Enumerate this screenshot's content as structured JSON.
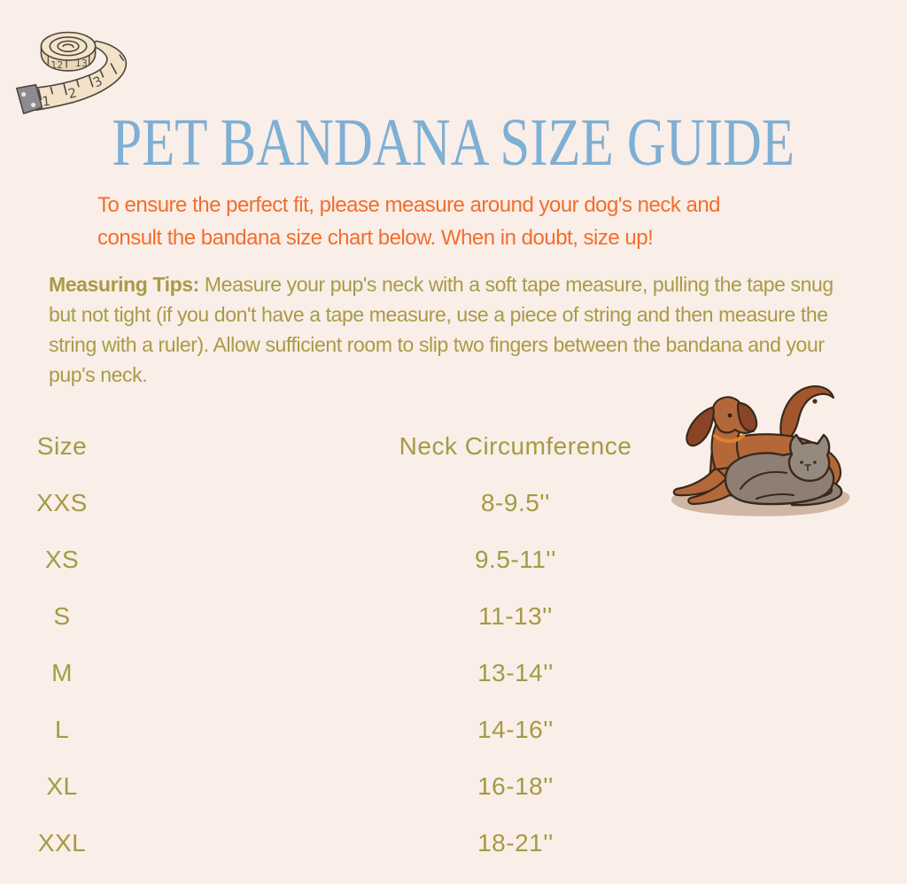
{
  "palette": {
    "background": "#faeee8",
    "title_blue": "#7eafd4",
    "intro_orange": "#f26e2d",
    "body_olive": "#a89b46"
  },
  "header": {
    "title": "PET BANDANA SIZE GUIDE",
    "intro_lines": [
      "To ensure the perfect fit, please measure around your dog's neck and",
      "consult the bandana size chart below. When in doubt, size up!"
    ]
  },
  "tips": {
    "label": "Measuring Tips:",
    "text": " Measure your pup's neck with a soft tape measure, pulling the tape snug but not tight (if you don't have a tape measure, use a piece of string and then measure the string with a ruler). Allow sufficient room to slip two fingers between the bandana and your pup's neck."
  },
  "size_table": {
    "columns": [
      "Size",
      "Neck Circumference"
    ],
    "rows": [
      {
        "size": "XXS",
        "neck": "8-9.5''"
      },
      {
        "size": "XS",
        "neck": "9.5-11''"
      },
      {
        "size": "S",
        "neck": "11-13''"
      },
      {
        "size": "M",
        "neck": "13-14''"
      },
      {
        "size": "L",
        "neck": "14-16''"
      },
      {
        "size": "XL",
        "neck": "16-18''"
      },
      {
        "size": "XXL",
        "neck": "18-21''"
      }
    ]
  },
  "tape": {
    "numbers": [
      "1",
      "2",
      "3"
    ],
    "coil_numbers": [
      "12",
      "13"
    ]
  }
}
